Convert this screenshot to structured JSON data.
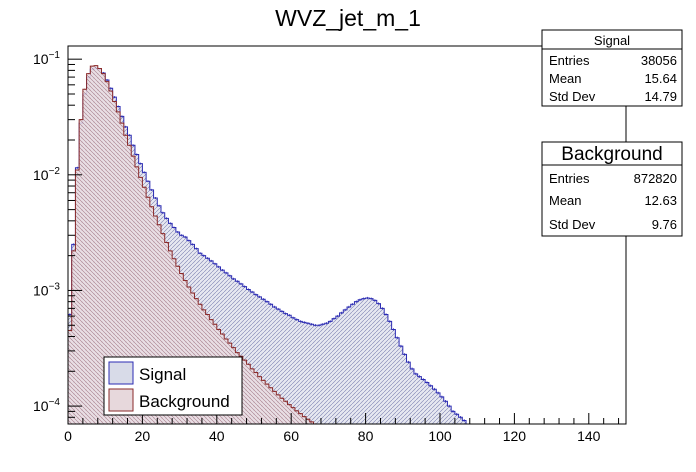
{
  "chart_data": {
    "type": "histogram",
    "title": "WVZ_jet_m_1",
    "xlabel": "",
    "ylabel": "",
    "xlim": [
      0,
      150
    ],
    "ylim": [
      7e-05,
      0.13
    ],
    "yscale": "log",
    "x_ticks": [
      0,
      20,
      40,
      60,
      80,
      100,
      120,
      140
    ],
    "y_ticks": [
      {
        "value": 0.1,
        "label": "10^-1"
      },
      {
        "value": 0.01,
        "label": "10^-2"
      },
      {
        "value": 0.001,
        "label": "10^-3"
      },
      {
        "value": 0.0001,
        "label": "10^-4"
      }
    ],
    "bin_width": 1,
    "series": [
      {
        "name": "Signal",
        "color": "#2b2bb3",
        "fill": "#d8dbe8",
        "x": [
          0,
          1,
          2,
          3,
          4,
          5,
          6,
          7,
          8,
          9,
          10,
          11,
          12,
          13,
          14,
          15,
          16,
          17,
          18,
          19,
          20,
          21,
          22,
          23,
          24,
          25,
          26,
          27,
          28,
          29,
          30,
          31,
          32,
          33,
          34,
          35,
          36,
          37,
          38,
          39,
          40,
          41,
          42,
          43,
          44,
          45,
          46,
          47,
          48,
          49,
          50,
          51,
          52,
          53,
          54,
          55,
          56,
          57,
          58,
          59,
          60,
          61,
          62,
          63,
          64,
          65,
          66,
          67,
          68,
          69,
          70,
          71,
          72,
          73,
          74,
          75,
          76,
          77,
          78,
          79,
          80,
          81,
          82,
          83,
          84,
          85,
          86,
          87,
          88,
          89,
          90,
          91,
          92,
          93,
          94,
          95,
          96,
          97,
          98,
          99,
          100,
          101,
          102,
          103,
          104,
          105,
          106,
          107,
          108,
          109,
          110,
          111,
          112,
          113,
          114,
          115,
          116,
          117,
          118,
          119,
          120,
          121,
          122,
          123,
          124,
          125,
          126,
          127,
          128,
          129,
          130,
          131,
          132,
          133,
          134,
          135,
          136,
          137,
          138,
          139,
          140,
          141,
          142,
          143,
          144,
          145,
          146,
          147,
          148,
          149
        ],
        "values": [
          0.00062,
          0.0025,
          0.0115,
          0.028,
          0.05,
          0.07,
          0.082,
          0.084,
          0.082,
          0.076,
          0.066,
          0.056,
          0.047,
          0.039,
          0.032,
          0.026,
          0.022,
          0.018,
          0.015,
          0.0125,
          0.0105,
          0.0088,
          0.0074,
          0.0063,
          0.0054,
          0.0047,
          0.0042,
          0.0038,
          0.0035,
          0.0032,
          0.003,
          0.0029,
          0.0027,
          0.0025,
          0.0023,
          0.0021,
          0.002,
          0.0019,
          0.0018,
          0.0017,
          0.0016,
          0.0015,
          0.00142,
          0.00134,
          0.00126,
          0.0012,
          0.00114,
          0.00108,
          0.00102,
          0.00097,
          0.00092,
          0.00088,
          0.00084,
          0.0008,
          0.00076,
          0.00072,
          0.00069,
          0.00066,
          0.00063,
          0.00061,
          0.00058,
          0.00056,
          0.00054,
          0.00053,
          0.00052,
          0.00051,
          0.0005,
          0.0005,
          0.00051,
          0.00052,
          0.00054,
          0.00057,
          0.0006,
          0.00064,
          0.00068,
          0.00072,
          0.00076,
          0.0008,
          0.00083,
          0.00085,
          0.00086,
          0.00085,
          0.00082,
          0.00077,
          0.0007,
          0.00062,
          0.00054,
          0.00046,
          0.00039,
          0.00033,
          0.00028,
          0.00024,
          0.00021,
          0.00019,
          0.00018,
          0.00017,
          0.00016,
          0.00015,
          0.00014,
          0.00013,
          0.00012,
          0.00011,
          0.0001,
          9e-05,
          8.5e-05,
          8e-05,
          7.5e-05,
          0,
          0,
          0,
          0,
          0,
          0,
          0,
          0,
          0,
          0,
          0,
          0,
          0,
          0,
          0,
          0,
          0,
          0,
          0,
          0,
          0,
          0,
          0,
          0,
          0,
          0,
          0,
          0,
          0,
          0,
          0,
          0,
          0,
          0,
          0,
          0,
          0,
          0,
          0,
          0,
          0,
          0,
          0
        ]
      },
      {
        "name": "Background",
        "color": "#8a2a2a",
        "fill": "#e7d8dc",
        "x": [
          0,
          1,
          2,
          3,
          4,
          5,
          6,
          7,
          8,
          9,
          10,
          11,
          12,
          13,
          14,
          15,
          16,
          17,
          18,
          19,
          20,
          21,
          22,
          23,
          24,
          25,
          26,
          27,
          28,
          29,
          30,
          31,
          32,
          33,
          34,
          35,
          36,
          37,
          38,
          39,
          40,
          41,
          42,
          43,
          44,
          45,
          46,
          47,
          48,
          49,
          50,
          51,
          52,
          53,
          54,
          55,
          56,
          57,
          58,
          59,
          60,
          61,
          62,
          63,
          64,
          65,
          66,
          67,
          68,
          69,
          70,
          71,
          72,
          73,
          74,
          75,
          76,
          77,
          78,
          79,
          80,
          81,
          82,
          83,
          84,
          85,
          86,
          87,
          88,
          89,
          90
        ],
        "values": [
          0.00045,
          0.0022,
          0.011,
          0.03,
          0.055,
          0.075,
          0.087,
          0.088,
          0.083,
          0.075,
          0.064,
          0.053,
          0.043,
          0.035,
          0.028,
          0.022,
          0.018,
          0.0145,
          0.0117,
          0.0095,
          0.0078,
          0.0064,
          0.0053,
          0.0044,
          0.0037,
          0.0031,
          0.0026,
          0.0022,
          0.00188,
          0.00162,
          0.0014,
          0.00122,
          0.00107,
          0.00095,
          0.00085,
          0.00076,
          0.00068,
          0.00062,
          0.00056,
          0.00051,
          0.00046,
          0.00042,
          0.00038,
          0.00035,
          0.00032,
          0.00029,
          0.00027,
          0.00025,
          0.00023,
          0.00021,
          0.000195,
          0.00018,
          0.000167,
          0.000155,
          0.000144,
          0.000134,
          0.000125,
          0.000117,
          0.00011,
          0.000103,
          9.7e-05,
          9.1e-05,
          8.6e-05,
          8.1e-05,
          7.7e-05,
          7.3e-05,
          7e-05,
          0,
          0,
          0,
          0,
          0,
          0,
          0,
          0,
          0,
          0,
          0,
          0,
          0,
          0,
          0,
          0,
          0,
          0,
          0,
          0,
          0,
          0,
          0,
          0
        ]
      }
    ],
    "legend": {
      "placement": "bottom-left",
      "entries": [
        "Signal",
        "Background"
      ]
    },
    "stats_boxes": [
      {
        "title": "Signal",
        "rows": [
          {
            "label": "Entries",
            "value": "38056"
          },
          {
            "label": "Mean",
            "value": "15.64"
          },
          {
            "label": "Std Dev",
            "value": "14.79"
          }
        ]
      },
      {
        "title": "Background",
        "rows": [
          {
            "label": "Entries",
            "value": "872820"
          },
          {
            "label": "Mean",
            "value": "12.63"
          },
          {
            "label": "Std Dev",
            "value": "9.76"
          }
        ]
      }
    ]
  }
}
